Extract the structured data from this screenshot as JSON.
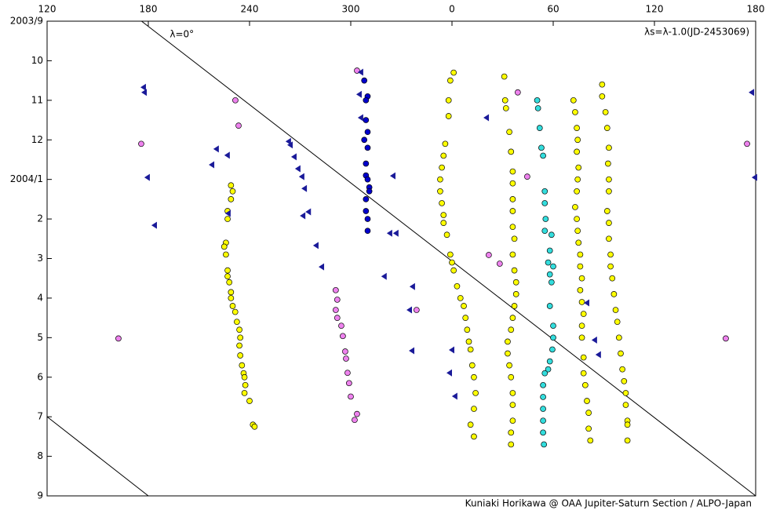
{
  "chart_data": {
    "type": "scatter",
    "note": "λs=λ-1.0(JD-2453069)",
    "credit": "Kuniaki Horikawa @ OAA Jupiter-Saturn Section / ALPO-Japan",
    "xlim": [
      120,
      540
    ],
    "xticks": [
      120,
      180,
      240,
      300,
      {
        "value": 360,
        "label": "0"
      },
      {
        "value": 420,
        "label": "60"
      },
      {
        "value": 480,
        "label": "120"
      },
      {
        "value": 540,
        "label": "180"
      }
    ],
    "ylim": [
      0,
      12
    ],
    "y_inverted": true,
    "yticks": [
      {
        "value": 0,
        "label": "2003/9"
      },
      {
        "value": 1,
        "label": "10"
      },
      {
        "value": 2,
        "label": "11"
      },
      {
        "value": 3,
        "label": "12"
      },
      {
        "value": 4,
        "label": "2004/1"
      },
      {
        "value": 5,
        "label": "2"
      },
      {
        "value": 6,
        "label": "3"
      },
      {
        "value": 7,
        "label": "4"
      },
      {
        "value": 8,
        "label": "5"
      },
      {
        "value": 9,
        "label": "6"
      },
      {
        "value": 10,
        "label": "7"
      },
      {
        "value": 11,
        "label": "8"
      },
      {
        "value": 12,
        "label": "9"
      }
    ],
    "grid": false,
    "lines": [
      {
        "label": "λ=0°",
        "color": "#000000",
        "x": [
          176,
          540
        ],
        "y": [
          0,
          12
        ]
      },
      {
        "color": "#000000",
        "x": [
          120,
          180
        ],
        "y": [
          10,
          12
        ]
      }
    ],
    "series": [
      {
        "color": "#ffff00",
        "marker": "circle",
        "x": [
          229,
          230,
          229,
          227,
          227,
          226,
          225,
          226,
          227,
          227,
          228,
          229,
          229,
          230,
          231.5,
          232.5,
          234,
          234.5,
          234,
          234.5,
          235.5,
          236.5,
          237,
          237.5,
          237,
          240,
          242,
          243,
          361,
          359,
          358,
          358,
          356,
          355,
          354,
          353,
          353,
          354,
          355,
          355,
          357,
          359,
          360,
          361,
          363,
          365,
          367,
          368,
          369,
          370,
          371,
          372,
          373,
          374,
          373,
          371,
          373,
          391,
          391.5,
          392,
          394,
          395,
          396,
          396,
          396,
          396,
          396,
          397,
          396,
          397,
          398,
          398,
          397,
          396,
          395,
          393,
          393,
          394,
          395,
          396,
          396,
          396,
          395,
          395,
          432,
          433,
          434,
          434.5,
          434,
          435,
          434.5,
          434,
          433,
          434,
          434.5,
          435,
          436,
          436,
          437,
          436,
          437,
          438,
          437,
          437,
          438,
          438,
          439,
          440,
          441,
          441,
          442,
          449,
          449,
          451,
          452,
          453,
          452.5,
          453,
          453,
          452,
          453,
          453,
          454,
          454,
          455,
          456,
          457,
          458,
          459,
          460,
          461,
          462,
          463,
          463,
          464,
          464,
          464
        ],
        "y": [
          4.15,
          4.3,
          4.5,
          4.8,
          5.0,
          5.6,
          5.7,
          5.9,
          6.3,
          6.45,
          6.6,
          6.85,
          7.0,
          7.2,
          7.35,
          7.6,
          7.8,
          8.0,
          8.2,
          8.45,
          8.7,
          8.9,
          9.0,
          9.2,
          9.4,
          9.6,
          10.2,
          10.25,
          1.3,
          1.5,
          2.0,
          2.4,
          3.1,
          3.4,
          3.7,
          4.0,
          4.3,
          4.6,
          4.9,
          5.1,
          5.4,
          5.9,
          6.1,
          6.3,
          6.7,
          7.0,
          7.2,
          7.5,
          7.8,
          8.1,
          8.3,
          8.7,
          9.0,
          9.4,
          9.8,
          10.2,
          10.5,
          1.4,
          2.0,
          2.2,
          2.8,
          3.3,
          3.8,
          4.1,
          4.5,
          4.8,
          5.2,
          5.5,
          5.9,
          6.3,
          6.6,
          6.9,
          7.2,
          7.5,
          7.8,
          8.1,
          8.4,
          8.7,
          9.0,
          9.4,
          9.7,
          10.1,
          10.4,
          10.7,
          2.0,
          2.3,
          2.7,
          3.0,
          3.3,
          3.7,
          4.0,
          4.3,
          4.7,
          5.0,
          5.3,
          5.6,
          5.9,
          6.2,
          6.5,
          6.8,
          7.1,
          7.4,
          7.7,
          8.0,
          8.5,
          8.9,
          9.2,
          9.6,
          9.9,
          10.3,
          10.6,
          1.6,
          1.9,
          2.3,
          2.7,
          3.2,
          3.6,
          4.0,
          4.3,
          4.8,
          5.1,
          5.5,
          5.9,
          6.2,
          6.5,
          6.9,
          7.3,
          7.6,
          8.0,
          8.4,
          8.8,
          9.1,
          9.4,
          9.7,
          10.1,
          10.2,
          10.6
        ]
      },
      {
        "color": "#33dddd",
        "marker": "circle",
        "x": [
          410.5,
          411,
          412,
          413,
          414,
          415,
          415,
          415.5,
          415,
          419,
          418,
          417,
          418,
          419,
          420,
          418,
          420,
          420,
          419.5,
          418,
          417,
          415,
          414,
          414,
          414,
          414,
          414,
          414.5
        ],
        "y": [
          2.0,
          2.2,
          2.7,
          3.2,
          3.4,
          4.3,
          4.6,
          5.0,
          5.3,
          5.4,
          5.8,
          6.1,
          6.4,
          6.6,
          6.2,
          7.2,
          7.7,
          8.0,
          8.3,
          8.6,
          8.8,
          8.9,
          9.2,
          9.5,
          9.8,
          10.1,
          10.4,
          10.7
        ]
      },
      {
        "color": "#ee82ee",
        "marker": "circle",
        "x": [
          162.3,
          175.8,
          231.6,
          233.5,
          303.7,
          291.1,
          292,
          291.1,
          292,
          294.4,
          295.3,
          296.7,
          297.2,
          298.1,
          299,
          300,
          303.7,
          302.3,
          339,
          381.8,
          388.3,
          399,
          404.6,
          522.3,
          534.9
        ],
        "y": [
          8.02,
          3.1,
          2.0,
          2.64,
          1.25,
          6.8,
          7.04,
          7.3,
          7.5,
          7.7,
          7.96,
          8.35,
          8.53,
          8.89,
          9.15,
          9.49,
          9.93,
          10.08,
          7.3,
          5.91,
          6.13,
          1.8,
          3.93,
          8.02,
          3.1
        ]
      },
      {
        "color": "#0000cc",
        "marker": "circle",
        "x": [
          308,
          310,
          309,
          309,
          310,
          308,
          310,
          309,
          309,
          310,
          311,
          311,
          309,
          309,
          310,
          310
        ],
        "y": [
          1.5,
          1.9,
          2.0,
          2.5,
          2.8,
          3.0,
          3.2,
          3.6,
          3.9,
          4.0,
          4.2,
          4.3,
          4.5,
          4.8,
          5.0,
          5.3
        ]
      },
      {
        "color": "#1a1a99",
        "marker": "triangle",
        "x": [
          177.2,
          177.7,
          179.5,
          183.7,
          217.7,
          220.4,
          226.9,
          227.4,
          263.2,
          264.2,
          266.5,
          268.8,
          271.1,
          272.6,
          271.7,
          275,
          279.5,
          282.8,
          306,
          305.1,
          306,
          325.1,
          323.2,
          326.9,
          319.9,
          336.7,
          334.9,
          336.3,
          360,
          358.6,
          361.8,
          380.5,
          444.6,
          446.9,
          440,
          537.7,
          539.5
        ],
        "y": [
          1.67,
          1.8,
          3.95,
          5.16,
          3.63,
          3.23,
          3.39,
          4.86,
          3.04,
          3.13,
          3.43,
          3.73,
          3.93,
          4.23,
          4.92,
          4.82,
          5.67,
          6.21,
          1.29,
          1.85,
          2.44,
          3.91,
          5.36,
          5.36,
          6.45,
          6.71,
          7.3,
          8.33,
          8.31,
          8.89,
          9.48,
          2.44,
          8.06,
          8.43,
          7.12,
          1.8,
          3.95
        ]
      }
    ]
  }
}
